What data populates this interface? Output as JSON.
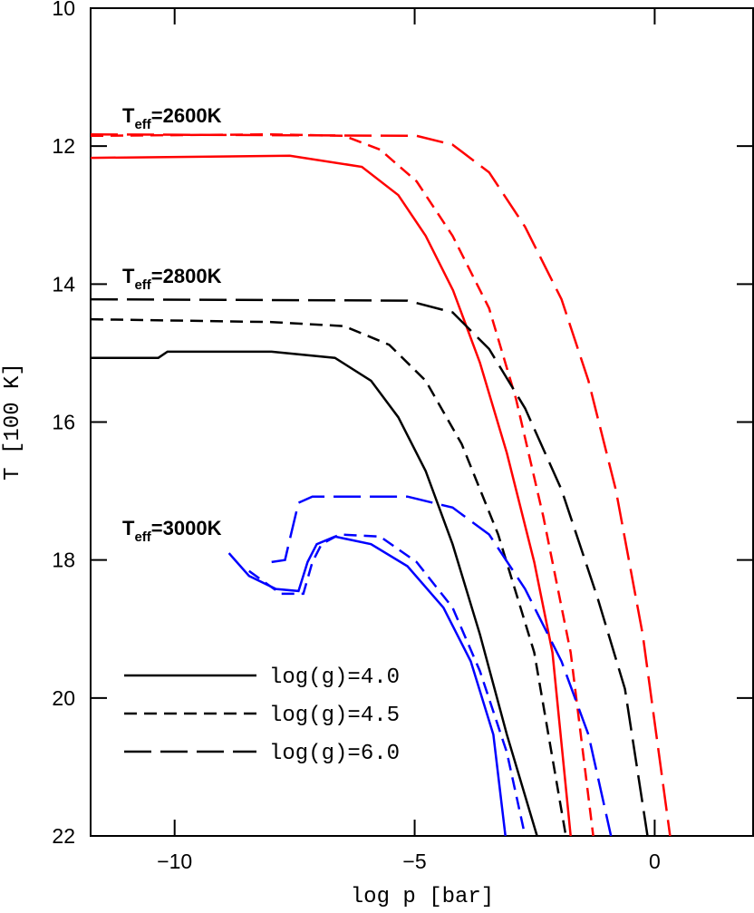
{
  "chart_data": {
    "type": "line",
    "xlabel": "log p [bar]",
    "ylabel": "T [100 K]",
    "xlim": [
      -11.75,
      2.05
    ],
    "ylim": [
      22,
      10
    ],
    "xticks": [
      {
        "value": -10,
        "label": "−10"
      },
      {
        "value": -5,
        "label": "−5"
      },
      0
    ],
    "yticks": [
      10,
      12,
      14,
      16,
      18,
      20,
      22
    ],
    "annotations": [
      {
        "parts": [
          "T",
          "eff",
          "=2600K"
        ]
      },
      {
        "parts": [
          "T",
          "eff",
          "=2800K"
        ]
      },
      {
        "parts": [
          "T",
          "eff",
          "=3000K"
        ]
      }
    ],
    "legend": [
      {
        "name": "log(g)=4.0",
        "dash": "solid"
      },
      {
        "name": "log(g)=4.5",
        "dash": "short"
      },
      {
        "name": "log(g)=6.0",
        "dash": "long"
      }
    ],
    "series": [
      {
        "color": "#ff0000",
        "dash": "solid",
        "x": [
          -11.75,
          -7.6,
          -6.1,
          -5.34,
          -4.77,
          -4.2,
          -3.64,
          -3.08,
          -2.51,
          -2.13,
          -1.75
        ],
        "values": [
          12.17,
          12.14,
          12.3,
          12.71,
          13.3,
          14.09,
          15.14,
          16.45,
          18.03,
          19.34,
          22.0
        ]
      },
      {
        "color": "#ff0000",
        "dash": "short",
        "x": [
          -11.75,
          -7.98,
          -6.47,
          -5.72,
          -4.96,
          -4.21,
          -3.45,
          -2.89,
          -2.32,
          -1.75,
          -1.28
        ],
        "values": [
          11.85,
          11.83,
          11.85,
          12.05,
          12.51,
          13.3,
          14.35,
          15.66,
          17.37,
          19.34,
          22.0
        ]
      },
      {
        "color": "#ff0000",
        "dash": "long",
        "x": [
          -11.75,
          -4.96,
          -4.21,
          -3.45,
          -2.7,
          -1.94,
          -1.38,
          -0.81,
          -0.25,
          0.32
        ],
        "values": [
          11.83,
          11.85,
          11.98,
          12.38,
          13.17,
          14.22,
          15.4,
          16.98,
          19.08,
          22.0
        ]
      },
      {
        "color": "#000000",
        "dash": "solid",
        "x": [
          -11.75,
          -10.34,
          -10.15,
          -7.98,
          -6.66,
          -5.91,
          -5.34,
          -4.77,
          -4.21,
          -3.64,
          -3.08,
          -2.45
        ],
        "values": [
          15.07,
          15.07,
          14.98,
          14.98,
          15.07,
          15.4,
          15.93,
          16.71,
          17.77,
          19.08,
          20.53,
          22.0
        ]
      },
      {
        "color": "#000000",
        "dash": "short",
        "x": [
          -11.75,
          -7.98,
          -6.47,
          -5.53,
          -4.77,
          -4.02,
          -3.26,
          -2.51,
          -1.85
        ],
        "values": [
          14.51,
          14.55,
          14.61,
          14.88,
          15.4,
          16.32,
          17.63,
          19.34,
          22.0
        ]
      },
      {
        "color": "#000000",
        "dash": "long",
        "x": [
          -11.75,
          -5.15,
          -4.21,
          -3.45,
          -2.7,
          -1.94,
          -1.19,
          -0.62,
          -0.15
        ],
        "values": [
          14.22,
          14.24,
          14.41,
          14.94,
          15.8,
          16.98,
          18.55,
          19.87,
          22.0
        ]
      },
      {
        "color": "#0000ff",
        "dash": "solid",
        "x": [
          -8.87,
          -8.45,
          -7.89,
          -7.42,
          -7.23,
          -7.04,
          -6.66,
          -5.91,
          -5.15,
          -4.4,
          -3.83,
          -3.36,
          -3.11
        ],
        "values": [
          17.9,
          18.23,
          18.42,
          18.45,
          18.03,
          17.77,
          17.66,
          17.77,
          18.09,
          18.69,
          19.47,
          20.53,
          22.0
        ]
      },
      {
        "color": "#0000ff",
        "dash": "short",
        "x": [
          -8.45,
          -7.79,
          -7.32,
          -7.13,
          -6.94,
          -6.57,
          -5.72,
          -4.96,
          -4.21,
          -3.64,
          -3.08,
          -2.7
        ],
        "values": [
          18.16,
          18.49,
          18.49,
          18.03,
          17.77,
          17.63,
          17.66,
          18.03,
          18.69,
          19.61,
          20.79,
          22.0
        ]
      },
      {
        "color": "#0000ff",
        "dash": "long",
        "x": [
          -7.98,
          -7.7,
          -7.6,
          -7.42,
          -7.13,
          -5.15,
          -4.21,
          -3.45,
          -2.7,
          -1.94,
          -1.38,
          -0.91
        ],
        "values": [
          18.03,
          18.0,
          17.7,
          17.17,
          17.08,
          17.08,
          17.24,
          17.63,
          18.42,
          19.47,
          20.53,
          22.0
        ]
      }
    ]
  }
}
